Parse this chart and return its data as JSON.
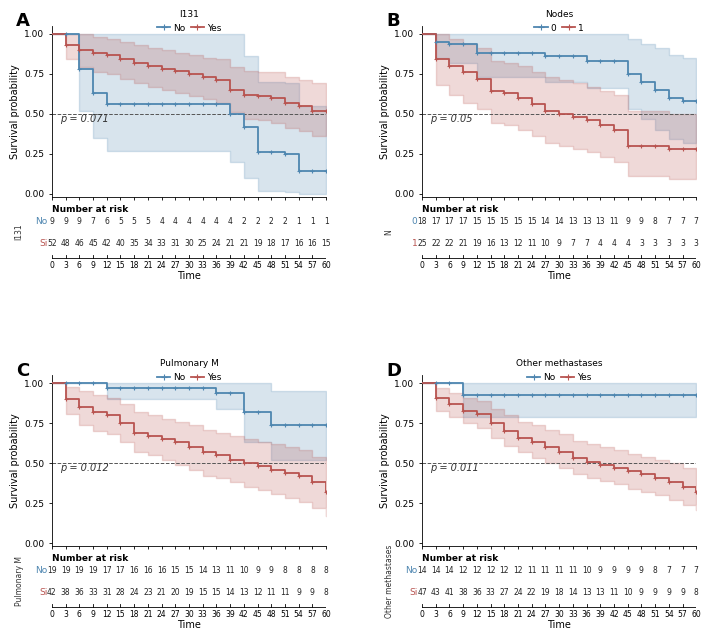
{
  "panels": [
    {
      "label": "A",
      "legend_title": "I131",
      "legend_labels": [
        "No",
        "Yes"
      ],
      "pvalue": "p = 0.071",
      "color_0": "#4e86b0",
      "color_1": "#b85450",
      "risk_ylabel": "I131",
      "risk_labels_0": [
        "No",
        [
          9,
          9,
          9,
          7,
          6,
          5,
          5,
          5,
          4,
          4,
          4,
          4,
          4,
          4,
          2,
          2,
          2,
          2,
          1,
          1,
          1
        ]
      ],
      "risk_labels_1": [
        "Si",
        [
          52,
          48,
          46,
          45,
          42,
          40,
          35,
          34,
          33,
          31,
          30,
          25,
          24,
          21,
          21,
          19,
          18,
          17,
          16,
          16,
          15
        ]
      ],
      "surv_0_x": [
        0,
        6,
        6,
        9,
        9,
        12,
        12,
        39,
        39,
        42,
        42,
        45,
        45,
        51,
        51,
        54,
        54,
        60
      ],
      "surv_0_y": [
        1.0,
        1.0,
        0.78,
        0.78,
        0.63,
        0.63,
        0.56,
        0.56,
        0.5,
        0.5,
        0.42,
        0.42,
        0.26,
        0.26,
        0.25,
        0.25,
        0.14,
        0.14
      ],
      "ci_0_upper": [
        1.0,
        1.0,
        1.0,
        1.0,
        1.0,
        1.0,
        1.0,
        1.0,
        1.0,
        0.86,
        0.86,
        0.7,
        0.7,
        0.69,
        0.69,
        0.55,
        0.55,
        0.55
      ],
      "ci_0_lower": [
        1.0,
        1.0,
        0.52,
        0.52,
        0.35,
        0.35,
        0.27,
        0.27,
        0.2,
        0.2,
        0.1,
        0.1,
        0.02,
        0.02,
        0.01,
        0.01,
        0.0,
        0.0
      ],
      "surv_1_x": [
        0,
        3,
        3,
        6,
        6,
        9,
        9,
        12,
        12,
        15,
        15,
        18,
        18,
        21,
        21,
        24,
        24,
        27,
        27,
        30,
        30,
        33,
        33,
        36,
        36,
        39,
        39,
        42,
        42,
        45,
        45,
        48,
        48,
        51,
        51,
        54,
        54,
        57,
        57,
        60
      ],
      "surv_1_y": [
        1.0,
        0.97,
        0.93,
        0.93,
        0.9,
        0.9,
        0.88,
        0.88,
        0.87,
        0.87,
        0.84,
        0.84,
        0.82,
        0.82,
        0.8,
        0.8,
        0.78,
        0.78,
        0.77,
        0.77,
        0.75,
        0.75,
        0.73,
        0.73,
        0.71,
        0.71,
        0.65,
        0.65,
        0.62,
        0.62,
        0.61,
        0.61,
        0.6,
        0.6,
        0.57,
        0.57,
        0.55,
        0.55,
        0.52,
        0.52
      ],
      "ci_1_upper": [
        1.0,
        1.0,
        1.0,
        1.0,
        1.0,
        1.0,
        0.98,
        0.98,
        0.97,
        0.97,
        0.95,
        0.95,
        0.93,
        0.93,
        0.91,
        0.91,
        0.9,
        0.9,
        0.88,
        0.88,
        0.87,
        0.87,
        0.85,
        0.85,
        0.84,
        0.84,
        0.79,
        0.79,
        0.77,
        0.77,
        0.76,
        0.76,
        0.76,
        0.76,
        0.73,
        0.73,
        0.71,
        0.71,
        0.69,
        0.69
      ],
      "ci_1_lower": [
        1.0,
        0.9,
        0.84,
        0.84,
        0.79,
        0.79,
        0.76,
        0.76,
        0.75,
        0.75,
        0.72,
        0.72,
        0.69,
        0.69,
        0.67,
        0.67,
        0.65,
        0.65,
        0.63,
        0.63,
        0.61,
        0.61,
        0.59,
        0.59,
        0.57,
        0.57,
        0.51,
        0.51,
        0.47,
        0.47,
        0.46,
        0.46,
        0.44,
        0.44,
        0.41,
        0.41,
        0.39,
        0.39,
        0.36,
        0.36
      ]
    },
    {
      "label": "B",
      "legend_title": "Nodes",
      "legend_labels": [
        "0",
        "1"
      ],
      "pvalue": "p = 0.05",
      "color_0": "#4e86b0",
      "color_1": "#b85450",
      "risk_ylabel": "N",
      "risk_labels_0": [
        "0",
        [
          18,
          17,
          17,
          17,
          15,
          15,
          15,
          15,
          15,
          14,
          14,
          13,
          13,
          13,
          11,
          9,
          9,
          8,
          7,
          7,
          7
        ]
      ],
      "risk_labels_1": [
        "1",
        [
          25,
          22,
          22,
          21,
          19,
          16,
          13,
          12,
          11,
          10,
          9,
          7,
          7,
          4,
          4,
          4,
          3,
          3,
          3,
          3,
          3
        ]
      ],
      "surv_0_x": [
        0,
        3,
        3,
        6,
        6,
        9,
        9,
        12,
        12,
        15,
        15,
        18,
        18,
        21,
        21,
        24,
        24,
        27,
        27,
        30,
        30,
        33,
        33,
        36,
        36,
        39,
        39,
        42,
        42,
        45,
        45,
        48,
        48,
        51,
        51,
        54,
        54,
        57,
        57,
        60
      ],
      "surv_0_y": [
        1.0,
        0.95,
        0.95,
        0.94,
        0.94,
        0.94,
        0.94,
        0.88,
        0.88,
        0.88,
        0.88,
        0.88,
        0.88,
        0.88,
        0.88,
        0.88,
        0.88,
        0.86,
        0.86,
        0.86,
        0.86,
        0.86,
        0.86,
        0.83,
        0.83,
        0.83,
        0.83,
        0.83,
        0.83,
        0.75,
        0.75,
        0.7,
        0.7,
        0.65,
        0.65,
        0.6,
        0.6,
        0.58,
        0.58,
        0.58
      ],
      "ci_0_upper": [
        1.0,
        1.0,
        1.0,
        1.0,
        1.0,
        1.0,
        1.0,
        1.0,
        1.0,
        1.0,
        1.0,
        1.0,
        1.0,
        1.0,
        1.0,
        1.0,
        1.0,
        1.0,
        1.0,
        1.0,
        1.0,
        1.0,
        1.0,
        1.0,
        1.0,
        1.0,
        1.0,
        1.0,
        1.0,
        0.97,
        0.97,
        0.94,
        0.94,
        0.91,
        0.91,
        0.87,
        0.87,
        0.85,
        0.85,
        0.85
      ],
      "ci_0_lower": [
        1.0,
        0.85,
        0.85,
        0.82,
        0.82,
        0.82,
        0.82,
        0.73,
        0.73,
        0.73,
        0.73,
        0.73,
        0.73,
        0.73,
        0.73,
        0.73,
        0.73,
        0.7,
        0.7,
        0.7,
        0.7,
        0.7,
        0.7,
        0.66,
        0.66,
        0.66,
        0.66,
        0.66,
        0.66,
        0.53,
        0.53,
        0.47,
        0.47,
        0.4,
        0.4,
        0.34,
        0.34,
        0.32,
        0.32,
        0.32
      ],
      "surv_1_x": [
        0,
        3,
        3,
        6,
        6,
        9,
        9,
        12,
        12,
        15,
        15,
        18,
        18,
        21,
        21,
        24,
        24,
        27,
        27,
        30,
        30,
        33,
        33,
        36,
        36,
        39,
        39,
        42,
        42,
        45,
        45,
        48,
        48,
        51,
        51,
        54,
        54,
        57,
        57,
        60
      ],
      "surv_1_y": [
        1.0,
        0.84,
        0.84,
        0.8,
        0.8,
        0.76,
        0.76,
        0.72,
        0.72,
        0.64,
        0.64,
        0.63,
        0.63,
        0.6,
        0.6,
        0.56,
        0.56,
        0.52,
        0.52,
        0.5,
        0.5,
        0.48,
        0.48,
        0.46,
        0.46,
        0.43,
        0.43,
        0.4,
        0.4,
        0.3,
        0.3,
        0.3,
        0.3,
        0.3,
        0.3,
        0.28,
        0.28,
        0.28,
        0.28,
        0.28
      ],
      "ci_1_upper": [
        1.0,
        1.0,
        1.0,
        0.97,
        0.97,
        0.94,
        0.94,
        0.91,
        0.91,
        0.83,
        0.83,
        0.82,
        0.82,
        0.8,
        0.8,
        0.76,
        0.76,
        0.73,
        0.73,
        0.71,
        0.71,
        0.69,
        0.69,
        0.67,
        0.67,
        0.64,
        0.64,
        0.62,
        0.62,
        0.52,
        0.52,
        0.52,
        0.52,
        0.52,
        0.52,
        0.5,
        0.5,
        0.5,
        0.5,
        0.5
      ],
      "ci_1_lower": [
        1.0,
        0.68,
        0.68,
        0.62,
        0.62,
        0.57,
        0.57,
        0.53,
        0.53,
        0.44,
        0.44,
        0.43,
        0.43,
        0.4,
        0.4,
        0.36,
        0.36,
        0.32,
        0.32,
        0.3,
        0.3,
        0.28,
        0.28,
        0.26,
        0.26,
        0.23,
        0.23,
        0.2,
        0.2,
        0.11,
        0.11,
        0.11,
        0.11,
        0.11,
        0.11,
        0.09,
        0.09,
        0.09,
        0.09,
        0.09
      ]
    },
    {
      "label": "C",
      "legend_title": "Pulmonary M",
      "legend_labels": [
        "No",
        "Yes"
      ],
      "pvalue": "p = 0.012",
      "color_0": "#4e86b0",
      "color_1": "#b85450",
      "risk_ylabel": "Pulmonary M",
      "risk_labels_0": [
        "No",
        [
          19,
          19,
          19,
          19,
          17,
          17,
          16,
          16,
          16,
          15,
          15,
          14,
          13,
          11,
          10,
          9,
          9,
          8,
          8,
          8,
          8
        ]
      ],
      "risk_labels_1": [
        "Si",
        [
          42,
          38,
          36,
          33,
          31,
          28,
          24,
          23,
          21,
          20,
          19,
          15,
          15,
          14,
          13,
          12,
          11,
          11,
          9,
          9,
          8
        ]
      ],
      "surv_0_x": [
        0,
        12,
        12,
        15,
        15,
        36,
        36,
        39,
        39,
        42,
        42,
        45,
        45,
        48,
        48,
        54,
        54,
        57,
        57,
        60
      ],
      "surv_0_y": [
        1.0,
        1.0,
        0.97,
        0.97,
        0.97,
        0.97,
        0.94,
        0.94,
        0.94,
        0.82,
        0.82,
        0.82,
        0.82,
        0.82,
        0.74,
        0.74,
        0.74,
        0.74,
        0.74,
        0.74
      ],
      "ci_0_upper": [
        1.0,
        1.0,
        1.0,
        1.0,
        1.0,
        1.0,
        1.0,
        1.0,
        1.0,
        1.0,
        1.0,
        1.0,
        1.0,
        1.0,
        0.95,
        0.95,
        0.95,
        0.95,
        0.95,
        0.95
      ],
      "ci_0_lower": [
        1.0,
        1.0,
        0.9,
        0.9,
        0.9,
        0.9,
        0.84,
        0.84,
        0.84,
        0.63,
        0.63,
        0.63,
        0.63,
        0.63,
        0.52,
        0.52,
        0.52,
        0.52,
        0.52,
        0.52
      ],
      "surv_1_x": [
        0,
        3,
        3,
        6,
        6,
        9,
        9,
        12,
        12,
        15,
        15,
        18,
        18,
        21,
        21,
        24,
        24,
        27,
        27,
        30,
        30,
        33,
        33,
        36,
        36,
        39,
        39,
        42,
        42,
        45,
        45,
        48,
        48,
        51,
        51,
        54,
        54,
        57,
        57,
        60
      ],
      "surv_1_y": [
        1.0,
        0.9,
        0.9,
        0.85,
        0.85,
        0.82,
        0.82,
        0.8,
        0.8,
        0.75,
        0.75,
        0.69,
        0.69,
        0.67,
        0.67,
        0.65,
        0.65,
        0.63,
        0.63,
        0.6,
        0.6,
        0.57,
        0.57,
        0.55,
        0.55,
        0.52,
        0.52,
        0.5,
        0.5,
        0.48,
        0.48,
        0.46,
        0.46,
        0.44,
        0.44,
        0.42,
        0.42,
        0.38,
        0.38,
        0.32
      ],
      "ci_1_upper": [
        1.0,
        0.98,
        0.98,
        0.95,
        0.95,
        0.93,
        0.93,
        0.91,
        0.91,
        0.87,
        0.87,
        0.82,
        0.82,
        0.8,
        0.8,
        0.78,
        0.78,
        0.76,
        0.76,
        0.74,
        0.74,
        0.71,
        0.71,
        0.69,
        0.69,
        0.67,
        0.67,
        0.65,
        0.65,
        0.63,
        0.63,
        0.62,
        0.62,
        0.6,
        0.6,
        0.58,
        0.58,
        0.54,
        0.54,
        0.48
      ],
      "ci_1_lower": [
        1.0,
        0.81,
        0.81,
        0.74,
        0.74,
        0.7,
        0.7,
        0.68,
        0.68,
        0.63,
        0.63,
        0.57,
        0.57,
        0.55,
        0.55,
        0.52,
        0.52,
        0.49,
        0.49,
        0.46,
        0.46,
        0.42,
        0.42,
        0.41,
        0.41,
        0.38,
        0.38,
        0.35,
        0.35,
        0.33,
        0.33,
        0.31,
        0.31,
        0.28,
        0.28,
        0.26,
        0.26,
        0.22,
        0.22,
        0.17
      ]
    },
    {
      "label": "D",
      "legend_title": "Other methastases",
      "legend_labels": [
        "No",
        "Yes"
      ],
      "pvalue": "p = 0.011",
      "color_0": "#4e86b0",
      "color_1": "#b85450",
      "risk_ylabel": "Other methastases",
      "risk_labels_0": [
        "No",
        [
          14,
          14,
          14,
          12,
          12,
          12,
          12,
          12,
          11,
          11,
          11,
          11,
          10,
          9,
          9,
          9,
          9,
          8,
          7,
          7,
          7
        ]
      ],
      "risk_labels_1": [
        "Si",
        [
          47,
          43,
          41,
          38,
          36,
          33,
          27,
          24,
          22,
          19,
          18,
          14,
          13,
          13,
          11,
          10,
          9,
          9,
          9,
          9,
          8
        ]
      ],
      "surv_0_x": [
        0,
        9,
        9,
        12,
        12,
        60
      ],
      "surv_0_y": [
        1.0,
        1.0,
        0.93,
        0.93,
        0.93,
        0.93
      ],
      "ci_0_upper": [
        1.0,
        1.0,
        1.0,
        1.0,
        1.0,
        1.0
      ],
      "ci_0_lower": [
        1.0,
        1.0,
        0.79,
        0.79,
        0.79,
        0.79
      ],
      "surv_1_x": [
        0,
        3,
        3,
        6,
        6,
        9,
        9,
        12,
        12,
        15,
        15,
        18,
        18,
        21,
        21,
        24,
        24,
        27,
        27,
        30,
        30,
        33,
        33,
        36,
        36,
        39,
        39,
        42,
        42,
        45,
        45,
        48,
        48,
        51,
        51,
        54,
        54,
        57,
        57,
        60
      ],
      "surv_1_y": [
        1.0,
        0.91,
        0.91,
        0.87,
        0.87,
        0.83,
        0.83,
        0.81,
        0.81,
        0.75,
        0.75,
        0.7,
        0.7,
        0.66,
        0.66,
        0.63,
        0.63,
        0.6,
        0.6,
        0.57,
        0.57,
        0.53,
        0.53,
        0.51,
        0.51,
        0.49,
        0.49,
        0.47,
        0.47,
        0.45,
        0.45,
        0.43,
        0.43,
        0.41,
        0.41,
        0.38,
        0.38,
        0.35,
        0.35,
        0.32
      ],
      "ci_1_upper": [
        1.0,
        0.97,
        0.97,
        0.94,
        0.94,
        0.91,
        0.91,
        0.89,
        0.89,
        0.84,
        0.84,
        0.8,
        0.8,
        0.76,
        0.76,
        0.74,
        0.74,
        0.71,
        0.71,
        0.68,
        0.68,
        0.64,
        0.64,
        0.62,
        0.62,
        0.6,
        0.6,
        0.58,
        0.58,
        0.56,
        0.56,
        0.54,
        0.54,
        0.52,
        0.52,
        0.5,
        0.5,
        0.47,
        0.47,
        0.44
      ],
      "ci_1_lower": [
        1.0,
        0.83,
        0.83,
        0.79,
        0.79,
        0.75,
        0.75,
        0.72,
        0.72,
        0.66,
        0.66,
        0.61,
        0.61,
        0.57,
        0.57,
        0.53,
        0.53,
        0.5,
        0.5,
        0.47,
        0.47,
        0.43,
        0.43,
        0.41,
        0.41,
        0.39,
        0.39,
        0.37,
        0.37,
        0.34,
        0.34,
        0.32,
        0.32,
        0.3,
        0.3,
        0.27,
        0.27,
        0.24,
        0.24,
        0.21
      ]
    }
  ],
  "bg_color": "#ffffff",
  "line_width": 1.3,
  "ci_alpha": 0.22,
  "xticks": [
    0,
    3,
    6,
    9,
    12,
    15,
    18,
    21,
    24,
    27,
    30,
    33,
    36,
    39,
    42,
    45,
    48,
    51,
    54,
    57,
    60
  ],
  "yticks": [
    0.0,
    0.25,
    0.5,
    0.75,
    1.0
  ]
}
